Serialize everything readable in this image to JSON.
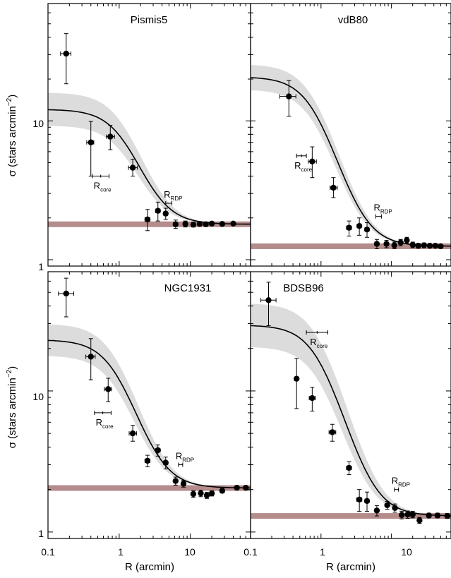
{
  "figure": {
    "x_axis_label": "R (arcmin)",
    "y_axis_label_main": "σ (stars arcmin",
    "y_axis_label_sup": "−2",
    "y_axis_label_close": ")",
    "x_tick_labels": [
      "0.1",
      "1",
      "10"
    ],
    "y_tick_labels_top": [
      "1",
      "10"
    ],
    "y_tick_labels_bottom": [
      "1",
      "10"
    ],
    "rcore_label": "R",
    "rcore_sub": "core",
    "rrdp_label": "R",
    "rrdp_sub": "RDP"
  },
  "colors": {
    "background_band": "#b48c8c",
    "uncertainty_band": "#dcdcdc",
    "curve": "#000000",
    "points": "#000000"
  },
  "chart_data": [
    {
      "type": "scatter",
      "title": "Pismis5",
      "xscale": "log",
      "yscale": "log",
      "xlim": [
        0.1,
        70
      ],
      "ylim": [
        0.9,
        70
      ],
      "fit": {
        "sigma_bg": 1.8,
        "sigma_0": 10.3,
        "r_core": 1.2,
        "band_factor": 1.38
      },
      "points": [
        {
          "x": 0.18,
          "y": 30.5,
          "xerr": [
            0.15,
            0.21
          ],
          "yerr": [
            18.5,
            42.5
          ]
        },
        {
          "x": 0.4,
          "y": 7.0,
          "xerr": [
            0.35,
            0.44
          ],
          "yerr": [
            4.0,
            9.9
          ]
        },
        {
          "x": 0.75,
          "y": 7.7,
          "xerr": [
            0.66,
            0.86
          ],
          "yerr": [
            6.2,
            9.3
          ]
        },
        {
          "x": 1.55,
          "y": 4.6,
          "xerr": [
            1.35,
            1.8
          ],
          "yerr": [
            4.0,
            5.3
          ]
        },
        {
          "x": 2.5,
          "y": 1.95,
          "xerr": [
            2.3,
            2.7
          ],
          "yerr": [
            1.62,
            2.3
          ]
        },
        {
          "x": 3.5,
          "y": 2.25,
          "xerr": [
            3.25,
            3.75
          ],
          "yerr": [
            1.9,
            2.6
          ]
        },
        {
          "x": 4.5,
          "y": 2.15,
          "xerr": [
            4.2,
            4.8
          ],
          "yerr": [
            1.95,
            2.35
          ]
        },
        {
          "x": 6.2,
          "y": 1.8,
          "xerr": [
            5.8,
            6.6
          ],
          "yerr": [
            1.68,
            1.93
          ]
        },
        {
          "x": 8.5,
          "y": 1.81,
          "xerr": [
            8.0,
            9.0
          ],
          "yerr": [
            1.72,
            1.9
          ]
        },
        {
          "x": 11.0,
          "y": 1.79,
          "xerr": [
            10.5,
            11.5
          ],
          "yerr": [
            1.72,
            1.86
          ]
        },
        {
          "x": 13.5,
          "y": 1.81,
          "xerr": [
            13.0,
            14.0
          ],
          "yerr": [
            1.75,
            1.88
          ]
        },
        {
          "x": 16.5,
          "y": 1.8,
          "xerr": [
            16.0,
            17.0
          ],
          "yerr": [
            1.74,
            1.86
          ]
        },
        {
          "x": 20.0,
          "y": 1.82,
          "xerr": [
            19.0,
            21.0
          ],
          "yerr": [
            1.76,
            1.88
          ]
        },
        {
          "x": 28.0,
          "y": 1.81,
          "xerr": [
            27.0,
            29.0
          ],
          "yerr": [
            1.76,
            1.86
          ]
        },
        {
          "x": 40.0,
          "y": 1.82,
          "xerr": [
            39.0,
            41.0
          ],
          "yerr": [
            1.78,
            1.86
          ]
        }
      ],
      "rcore_marker": {
        "x_low": 0.42,
        "x_high": 0.72,
        "y": 4.0
      },
      "rrdp_marker": {
        "x_low": 4.5,
        "x_high": 5.5,
        "y": 2.55
      }
    },
    {
      "type": "scatter",
      "title": "vdB80",
      "xscale": "log",
      "yscale": "log",
      "xlim": [
        0.1,
        70
      ],
      "ylim": [
        0.9,
        70
      ],
      "fit": {
        "sigma_bg": 1.25,
        "sigma_0": 19.5,
        "r_core": 0.85,
        "band_factor": 1.25
      },
      "points": [
        {
          "x": 0.35,
          "y": 15.0,
          "xerr": [
            0.26,
            0.44
          ],
          "yerr": [
            10.8,
            19.5
          ]
        },
        {
          "x": 0.75,
          "y": 5.1,
          "xerr": [
            0.66,
            0.86
          ],
          "yerr": [
            3.9,
            6.5
          ]
        },
        {
          "x": 1.5,
          "y": 3.3,
          "xerr": [
            1.35,
            1.7
          ],
          "yerr": [
            2.8,
            3.9
          ]
        },
        {
          "x": 2.5,
          "y": 1.7,
          "xerr": [
            2.3,
            2.7
          ],
          "yerr": [
            1.48,
            1.9
          ]
        },
        {
          "x": 3.5,
          "y": 1.75,
          "xerr": [
            3.25,
            3.75
          ],
          "yerr": [
            1.5,
            2.0
          ]
        },
        {
          "x": 4.5,
          "y": 1.65,
          "xerr": [
            4.2,
            4.8
          ],
          "yerr": [
            1.45,
            1.85
          ]
        },
        {
          "x": 6.2,
          "y": 1.3,
          "xerr": [
            5.8,
            6.6
          ],
          "yerr": [
            1.2,
            1.4
          ]
        },
        {
          "x": 8.5,
          "y": 1.3,
          "xerr": [
            8.0,
            9.0
          ],
          "yerr": [
            1.22,
            1.38
          ]
        },
        {
          "x": 11.0,
          "y": 1.27,
          "xerr": [
            10.5,
            11.5
          ],
          "yerr": [
            1.2,
            1.34
          ]
        },
        {
          "x": 13.5,
          "y": 1.33,
          "xerr": [
            13.0,
            14.0
          ],
          "yerr": [
            1.26,
            1.4
          ]
        },
        {
          "x": 16.5,
          "y": 1.38,
          "xerr": [
            16.0,
            17.0
          ],
          "yerr": [
            1.31,
            1.45
          ]
        },
        {
          "x": 20.0,
          "y": 1.28,
          "xerr": [
            19.0,
            21.0
          ],
          "yerr": [
            1.22,
            1.34
          ]
        },
        {
          "x": 24.0,
          "y": 1.26,
          "xerr": [
            23.0,
            25.0
          ],
          "yerr": [
            1.21,
            1.31
          ]
        },
        {
          "x": 29.0,
          "y": 1.27,
          "xerr": [
            28.0,
            30.0
          ],
          "yerr": [
            1.22,
            1.32
          ]
        },
        {
          "x": 35.0,
          "y": 1.26,
          "xerr": [
            34.0,
            36.0
          ],
          "yerr": [
            1.22,
            1.3
          ]
        },
        {
          "x": 42.0,
          "y": 1.26,
          "xerr": [
            41.0,
            43.0
          ],
          "yerr": [
            1.22,
            1.3
          ]
        },
        {
          "x": 50.0,
          "y": 1.25,
          "xerr": [
            49.0,
            51.0
          ],
          "yerr": [
            1.21,
            1.29
          ]
        }
      ],
      "rcore_marker": {
        "x_low": 0.45,
        "x_high": 0.62,
        "y": 5.6
      },
      "rrdp_marker": {
        "x_low": 6.0,
        "x_high": 7.2,
        "y": 2.05
      }
    },
    {
      "type": "scatter",
      "title": "NGC1931",
      "xscale": "log",
      "yscale": "log",
      "xlim": [
        0.1,
        70
      ],
      "ylim": [
        0.9,
        70
      ],
      "fit": {
        "sigma_bg": 2.05,
        "sigma_0": 21.0,
        "r_core": 0.95,
        "band_factor": 1.33
      },
      "points": [
        {
          "x": 0.18,
          "y": 49.0,
          "xerr": [
            0.14,
            0.23
          ],
          "yerr": [
            33.5,
            63.0
          ]
        },
        {
          "x": 0.4,
          "y": 17.5,
          "xerr": [
            0.34,
            0.46
          ],
          "yerr": [
            12.0,
            23.5
          ]
        },
        {
          "x": 0.7,
          "y": 10.3,
          "xerr": [
            0.62,
            0.78
          ],
          "yerr": [
            8.4,
            12.3
          ]
        },
        {
          "x": 1.55,
          "y": 5.0,
          "xerr": [
            1.38,
            1.75
          ],
          "yerr": [
            4.4,
            5.7
          ]
        },
        {
          "x": 2.5,
          "y": 3.2,
          "xerr": [
            2.3,
            2.7
          ],
          "yerr": [
            2.9,
            3.5
          ]
        },
        {
          "x": 3.5,
          "y": 3.8,
          "xerr": [
            3.25,
            3.75
          ],
          "yerr": [
            3.45,
            4.15
          ]
        },
        {
          "x": 4.5,
          "y": 3.1,
          "xerr": [
            4.2,
            4.8
          ],
          "yerr": [
            2.8,
            3.4
          ]
        },
        {
          "x": 6.2,
          "y": 2.3,
          "xerr": [
            5.8,
            6.6
          ],
          "yerr": [
            2.15,
            2.45
          ]
        },
        {
          "x": 8.0,
          "y": 2.2,
          "xerr": [
            7.5,
            8.5
          ],
          "yerr": [
            2.08,
            2.32
          ]
        },
        {
          "x": 11.0,
          "y": 1.86,
          "xerr": [
            10.4,
            11.6
          ],
          "yerr": [
            1.76,
            1.96
          ]
        },
        {
          "x": 14.0,
          "y": 1.88,
          "xerr": [
            13.4,
            14.6
          ],
          "yerr": [
            1.78,
            1.98
          ]
        },
        {
          "x": 17.0,
          "y": 1.82,
          "xerr": [
            16.3,
            17.7
          ],
          "yerr": [
            1.73,
            1.91
          ]
        },
        {
          "x": 20.0,
          "y": 1.88,
          "xerr": [
            19.2,
            20.8
          ],
          "yerr": [
            1.8,
            1.96
          ]
        },
        {
          "x": 28.0,
          "y": 1.96,
          "xerr": [
            27.0,
            29.0
          ],
          "yerr": [
            1.89,
            2.03
          ]
        },
        {
          "x": 45.0,
          "y": 2.06,
          "xerr": [
            43.0,
            47.0
          ],
          "yerr": [
            2.0,
            2.12
          ]
        },
        {
          "x": 60.0,
          "y": 2.06,
          "xerr": [
            58.0,
            62.0
          ],
          "yerr": [
            2.0,
            2.12
          ]
        }
      ],
      "rcore_marker": {
        "x_low": 0.45,
        "x_high": 0.77,
        "y": 7.0
      },
      "rrdp_marker": {
        "x_low": 6.8,
        "x_high": 7.8,
        "y": 3.0
      }
    },
    {
      "type": "scatter",
      "title": "BDSB96",
      "xscale": "log",
      "yscale": "log",
      "xlim": [
        0.1,
        70
      ],
      "ylim": [
        0.9,
        70
      ],
      "fit": {
        "sigma_bg": 1.3,
        "sigma_0": 28.0,
        "r_core": 1.0,
        "band_factor": 1.45
      },
      "points": [
        {
          "x": 0.18,
          "y": 44.0,
          "xerr": [
            0.14,
            0.23
          ],
          "yerr": [
            29.0,
            59.0
          ]
        },
        {
          "x": 0.45,
          "y": 12.2,
          "xerr": [
            0.42,
            0.48
          ],
          "yerr": [
            7.5,
            17.0
          ]
        },
        {
          "x": 0.75,
          "y": 8.9,
          "xerr": [
            0.68,
            0.83
          ],
          "yerr": [
            7.2,
            10.6
          ]
        },
        {
          "x": 1.45,
          "y": 5.1,
          "xerr": [
            1.3,
            1.62
          ],
          "yerr": [
            4.4,
            5.8
          ]
        },
        {
          "x": 2.5,
          "y": 2.85,
          "xerr": [
            2.3,
            2.7
          ],
          "yerr": [
            2.55,
            3.15
          ]
        },
        {
          "x": 3.5,
          "y": 1.7,
          "xerr": [
            3.2,
            3.8
          ],
          "yerr": [
            1.4,
            2.0
          ]
        },
        {
          "x": 4.5,
          "y": 1.66,
          "xerr": [
            4.2,
            4.8
          ],
          "yerr": [
            1.4,
            1.92
          ]
        },
        {
          "x": 6.2,
          "y": 1.42,
          "xerr": [
            5.8,
            6.6
          ],
          "yerr": [
            1.3,
            1.54
          ]
        },
        {
          "x": 8.7,
          "y": 1.55,
          "xerr": [
            8.2,
            9.2
          ],
          "yerr": [
            1.45,
            1.65
          ]
        },
        {
          "x": 11.2,
          "y": 1.48,
          "xerr": [
            10.6,
            11.8
          ],
          "yerr": [
            1.38,
            1.58
          ]
        },
        {
          "x": 14.0,
          "y": 1.32,
          "xerr": [
            13.3,
            14.7
          ],
          "yerr": [
            1.24,
            1.4
          ]
        },
        {
          "x": 17.0,
          "y": 1.33,
          "xerr": [
            16.2,
            17.8
          ],
          "yerr": [
            1.25,
            1.41
          ]
        },
        {
          "x": 20.0,
          "y": 1.33,
          "xerr": [
            19.2,
            20.8
          ],
          "yerr": [
            1.26,
            1.4
          ]
        },
        {
          "x": 25.0,
          "y": 1.21,
          "xerr": [
            24.0,
            26.0
          ],
          "yerr": [
            1.15,
            1.27
          ]
        },
        {
          "x": 34.0,
          "y": 1.31,
          "xerr": [
            33.0,
            35.0
          ],
          "yerr": [
            1.26,
            1.36
          ]
        },
        {
          "x": 45.0,
          "y": 1.31,
          "xerr": [
            44.0,
            46.0
          ],
          "yerr": [
            1.26,
            1.36
          ]
        },
        {
          "x": 62.0,
          "y": 1.3,
          "xerr": [
            60.0,
            64.0
          ],
          "yerr": [
            1.25,
            1.35
          ]
        }
      ],
      "rcore_marker": {
        "x_low": 0.62,
        "x_high": 1.25,
        "y": 26.0
      },
      "rrdp_marker": {
        "x_low": 11.0,
        "x_high": 12.6,
        "y": 2.0
      }
    }
  ]
}
